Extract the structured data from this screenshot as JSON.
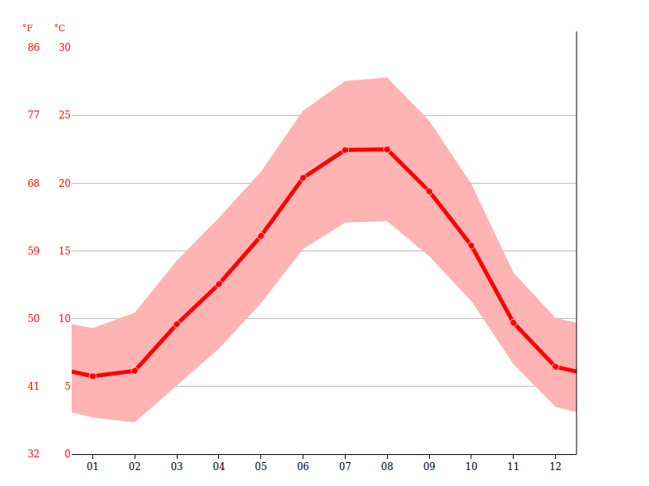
{
  "chart_data": {
    "type": "line",
    "y_label": "°C",
    "y2_label": "°F",
    "x": [
      0.5,
      1,
      2,
      3,
      4,
      5,
      6,
      7,
      8,
      9,
      10,
      11,
      12,
      12.5
    ],
    "xlim": [
      0.5,
      12.5
    ],
    "xticks": [
      {
        "value": 1,
        "label": "01"
      },
      {
        "value": 2,
        "label": "02"
      },
      {
        "value": 3,
        "label": "03"
      },
      {
        "value": 4,
        "label": "04"
      },
      {
        "value": 5,
        "label": "05"
      },
      {
        "value": 6,
        "label": "06"
      },
      {
        "value": 7,
        "label": "07"
      },
      {
        "value": 8,
        "label": "08"
      },
      {
        "value": 9,
        "label": "09"
      },
      {
        "value": 10,
        "label": "10"
      },
      {
        "value": 11,
        "label": "11"
      },
      {
        "value": 12,
        "label": "12"
      }
    ],
    "ylim": [
      0,
      30
    ],
    "yticks": [
      0,
      5,
      10,
      15,
      20,
      25,
      30
    ],
    "y2lim": [
      32,
      86
    ],
    "y2ticks": [
      32,
      41,
      50,
      59,
      68,
      77,
      86
    ],
    "grid": true,
    "series": [
      {
        "type": "range",
        "color": "#ffb3b3",
        "low": [
          3.1,
          2.7,
          2.35,
          5.1,
          7.8,
          11.15,
          15.15,
          17.1,
          17.2,
          14.6,
          11.3,
          6.65,
          3.5,
          3.1
        ],
        "high": [
          9.6,
          9.3,
          10.45,
          14.3,
          17.45,
          20.85,
          25.35,
          27.55,
          27.8,
          24.6,
          19.95,
          13.4,
          10.05,
          9.7
        ]
      },
      {
        "type": "line",
        "color": "#ff0000",
        "marker": "circle",
        "values": [
          6.1,
          5.75,
          6.15,
          9.6,
          12.55,
          16.1,
          20.4,
          22.45,
          22.5,
          19.4,
          15.4,
          9.7,
          6.45,
          6.1
        ]
      }
    ]
  }
}
